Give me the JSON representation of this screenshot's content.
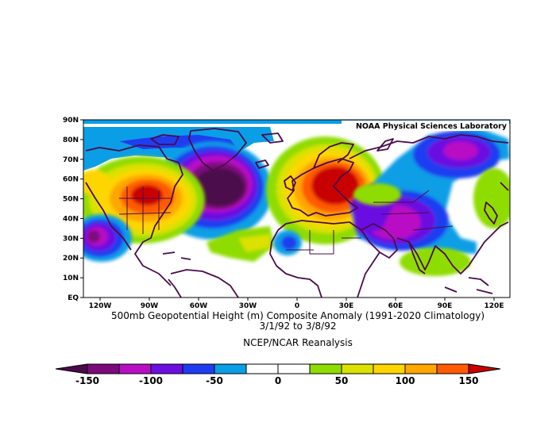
{
  "header": {
    "credit": "NOAA Physical Sciences Laboratory"
  },
  "map": {
    "lat_labels": [
      "90N",
      "80N",
      "70N",
      "60N",
      "50N",
      "40N",
      "30N",
      "20N",
      "10N",
      "EQ"
    ],
    "lon_labels": [
      "120W",
      "90W",
      "60W",
      "30W",
      "0",
      "30E",
      "60E",
      "90E",
      "120E"
    ],
    "coastline_color": "#4a0b4a"
  },
  "caption": {
    "line1": "500mb Geopotential Height (m) Composite Anomaly (1991-2020 Climatology)",
    "line2": "3/1/92   to 3/8/92",
    "line3": "NCEP/NCAR Reanalysis"
  },
  "colorbar": {
    "labels": [
      "-150",
      "-100",
      "-50",
      "0",
      "50",
      "100",
      "150"
    ],
    "colors": [
      "#7b0a7b",
      "#b80fc4",
      "#6b0fe0",
      "#1f3df0",
      "#0a9ee6",
      "#ffffff",
      "#ffffff",
      "#8fdc00",
      "#dbe100",
      "#ffd500",
      "#ffa600",
      "#ff5a00"
    ],
    "min_color": "#4b0a4b",
    "max_color": "#c80000"
  }
}
